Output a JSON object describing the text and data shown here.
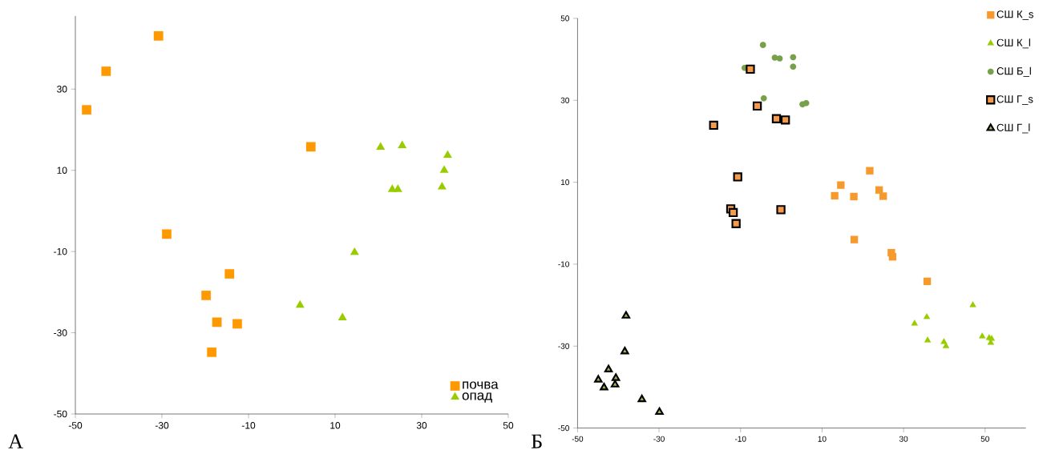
{
  "chart_data": [
    {
      "type": "scatter",
      "xlim": [
        -50,
        50
      ],
      "ylim": [
        -50,
        48
      ],
      "xticks": [
        -50,
        -30,
        -10,
        10,
        30,
        50
      ],
      "yticks": [
        -50,
        -30,
        -10,
        10,
        30
      ],
      "grid": false,
      "legend": "bottom right",
      "annotations": [
        "А"
      ],
      "series": [
        {
          "name": "почва",
          "color": "#ff9900",
          "marker": "square",
          "x": [
            -30.8,
            -42.9,
            -47.4,
            4.4,
            -28.9,
            -14.4,
            -19.8,
            -17.3,
            -12.6,
            -18.5
          ],
          "values": [
            43.1,
            34.4,
            24.9,
            15.8,
            -5.7,
            -15.5,
            -20.8,
            -27.4,
            -27.8,
            -34.8
          ]
        },
        {
          "name": "опад",
          "color": "#99cc00",
          "marker": "triangle",
          "x": [
            20.5,
            25.5,
            36.0,
            35.2,
            23.2,
            24.5,
            34.7,
            14.5,
            1.9,
            11.7
          ],
          "values": [
            15.7,
            16.1,
            13.7,
            10.0,
            5.3,
            5.3,
            5.9,
            -10.2,
            -23.2,
            -26.3
          ]
        }
      ]
    },
    {
      "type": "scatter",
      "xlim": [
        -50,
        60
      ],
      "ylim": [
        -50,
        50
      ],
      "xticks": [
        -50,
        -30,
        -10,
        10,
        30,
        50
      ],
      "yticks": [
        -50,
        -30,
        -10,
        10,
        30,
        50
      ],
      "grid": false,
      "legend": "top right",
      "annotations": [
        "Б"
      ],
      "series": [
        {
          "name": "СШ К_s",
          "color": "#f79a2e",
          "marker": "square",
          "x": [
            21.7,
            14.6,
            13.1,
            17.8,
            24.0,
            25.0,
            17.9,
            27.0,
            27.3,
            35.8
          ],
          "values": [
            12.8,
            9.3,
            6.7,
            6.5,
            8.1,
            6.6,
            -4.0,
            -7.2,
            -8.2,
            -14.2
          ]
        },
        {
          "name": "СШ К_l",
          "color": "#99cc00",
          "marker": "triangle",
          "x": [
            47.0,
            35.7,
            32.7,
            35.9,
            39.9,
            40.4,
            49.3,
            51.0,
            51.6,
            51.4
          ],
          "values": [
            -20.0,
            -22.9,
            -24.5,
            -28.6,
            -29.0,
            -30.0,
            -27.6,
            -28.0,
            -28.2,
            -29.2
          ]
        },
        {
          "name": "СШ Б_l",
          "color": "#77a04a",
          "marker": "circle",
          "x": [
            -4.5,
            -9.0,
            -1.6,
            -0.4,
            2.9,
            2.9,
            -4.3,
            5.2,
            6.1
          ],
          "values": [
            43.5,
            37.9,
            40.4,
            40.2,
            40.5,
            38.2,
            30.5,
            29.0,
            29.3
          ]
        },
        {
          "name": "СШ Г_s",
          "color": "#f59a4a",
          "marker": "square",
          "x": [
            -7.6,
            -5.9,
            -16.6,
            -1.2,
            1.0,
            -10.7,
            -12.4,
            -11.8,
            -11.1,
            -0.1
          ],
          "values": [
            37.6,
            28.6,
            23.9,
            25.5,
            25.2,
            11.3,
            3.5,
            2.6,
            -0.1,
            3.3
          ]
        },
        {
          "name": "СШ Г_l",
          "color": "#9bbb59",
          "marker": "triangle",
          "x": [
            -38.1,
            -38.4,
            -42.4,
            -40.6,
            -44.9,
            -40.8,
            -43.5,
            -34.2,
            -29.9
          ],
          "values": [
            -22.6,
            -31.3,
            -35.7,
            -37.8,
            -38.2,
            -39.4,
            -40.1,
            -43.0,
            -46.1
          ]
        }
      ]
    }
  ]
}
